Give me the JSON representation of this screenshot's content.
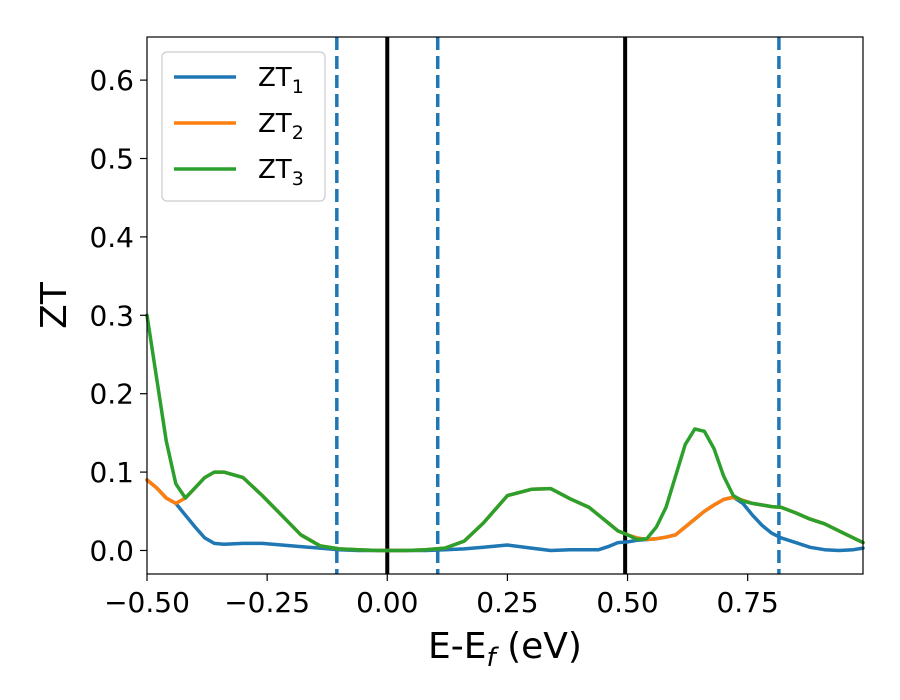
{
  "chart_data": {
    "type": "line",
    "xlabel": "E-E",
    "xlabel_sub": "f",
    "xlabel_unit": "(eV)",
    "ylabel": "ZT",
    "xlim": [
      -0.5,
      0.99
    ],
    "ylim": [
      -0.03,
      0.655
    ],
    "xticks": [
      -0.5,
      -0.25,
      0.0,
      0.25,
      0.5,
      0.75
    ],
    "xtick_labels": [
      "−0.50",
      "−0.25",
      "0.00",
      "0.25",
      "0.50",
      "0.75"
    ],
    "yticks": [
      0.0,
      0.1,
      0.2,
      0.3,
      0.4,
      0.5,
      0.6
    ],
    "ytick_labels": [
      "0.0",
      "0.1",
      "0.2",
      "0.3",
      "0.4",
      "0.5",
      "0.6"
    ],
    "grid": false,
    "legend_position": "top-left",
    "vlines": [
      {
        "x": 0.0,
        "style": "solid",
        "color": "#000000"
      },
      {
        "x": 0.495,
        "style": "solid",
        "color": "#000000"
      },
      {
        "x": -0.105,
        "style": "dashed",
        "color": "#1f77b4"
      },
      {
        "x": 0.105,
        "style": "dashed",
        "color": "#1f77b4"
      },
      {
        "x": 0.815,
        "style": "dashed",
        "color": "#1f77b4"
      }
    ],
    "series": [
      {
        "name": "ZT",
        "subscript": "1",
        "color": "#1f77b4",
        "x": [
          -0.5,
          -0.48,
          -0.46,
          -0.44,
          -0.42,
          -0.4,
          -0.38,
          -0.36,
          -0.34,
          -0.3,
          -0.26,
          -0.22,
          -0.18,
          -0.14,
          -0.1,
          -0.06,
          -0.02,
          0.0,
          0.04,
          0.08,
          0.12,
          0.16,
          0.2,
          0.25,
          0.3,
          0.34,
          0.38,
          0.42,
          0.44,
          0.46,
          0.48,
          0.5,
          0.52,
          0.54,
          0.56,
          0.58,
          0.6,
          0.62,
          0.64,
          0.66,
          0.68,
          0.7,
          0.72,
          0.74,
          0.76,
          0.78,
          0.8,
          0.82,
          0.85,
          0.88,
          0.91,
          0.94,
          0.97,
          0.99
        ],
        "y": [
          0.09,
          0.08,
          0.067,
          0.06,
          0.045,
          0.03,
          0.016,
          0.009,
          0.008,
          0.009,
          0.009,
          0.007,
          0.005,
          0.003,
          0.001,
          0.0,
          0.0,
          0.0,
          0.0,
          0.0,
          0.001,
          0.002,
          0.004,
          0.007,
          0.003,
          0.0,
          0.001,
          0.001,
          0.001,
          0.005,
          0.01,
          0.011,
          0.013,
          0.014,
          0.015,
          0.017,
          0.02,
          0.03,
          0.04,
          0.05,
          0.058,
          0.065,
          0.068,
          0.06,
          0.045,
          0.032,
          0.022,
          0.016,
          0.01,
          0.004,
          0.001,
          0.0,
          0.001,
          0.003
        ]
      },
      {
        "name": "ZT",
        "subscript": "2",
        "color": "#ff7f0e",
        "x": [
          -0.5,
          -0.48,
          -0.46,
          -0.44,
          -0.42,
          -0.4,
          -0.38,
          -0.36,
          -0.34,
          -0.3,
          -0.26,
          -0.22,
          -0.18,
          -0.14,
          -0.1,
          -0.06,
          -0.02,
          0.0,
          0.04,
          0.08,
          0.12,
          0.16,
          0.2,
          0.25,
          0.3,
          0.34,
          0.38,
          0.42,
          0.44,
          0.46,
          0.48,
          0.5,
          0.52,
          0.54,
          0.56,
          0.58,
          0.6,
          0.62,
          0.64,
          0.66,
          0.68,
          0.7,
          0.72,
          0.74,
          0.76,
          0.78,
          0.8,
          0.82,
          0.85,
          0.88,
          0.91,
          0.94,
          0.97,
          0.99
        ],
        "y": [
          0.09,
          0.08,
          0.067,
          0.06,
          0.067,
          0.08,
          0.093,
          0.1,
          0.1,
          0.093,
          0.07,
          0.045,
          0.02,
          0.006,
          0.002,
          0.001,
          0.0,
          0.0,
          0.0,
          0.001,
          0.003,
          0.012,
          0.035,
          0.07,
          0.078,
          0.079,
          0.066,
          0.055,
          0.045,
          0.035,
          0.025,
          0.02,
          0.016,
          0.014,
          0.015,
          0.017,
          0.02,
          0.03,
          0.04,
          0.05,
          0.058,
          0.065,
          0.068,
          0.064,
          0.06,
          0.058,
          0.056,
          0.055,
          0.048,
          0.04,
          0.034,
          0.025,
          0.016,
          0.01
        ]
      },
      {
        "name": "ZT",
        "subscript": "3",
        "color": "#2ca02c",
        "x": [
          -0.5,
          -0.48,
          -0.46,
          -0.44,
          -0.42,
          -0.4,
          -0.38,
          -0.36,
          -0.34,
          -0.3,
          -0.26,
          -0.22,
          -0.18,
          -0.14,
          -0.1,
          -0.06,
          -0.02,
          0.0,
          0.04,
          0.08,
          0.12,
          0.16,
          0.2,
          0.25,
          0.3,
          0.34,
          0.38,
          0.42,
          0.44,
          0.46,
          0.48,
          0.5,
          0.52,
          0.54,
          0.56,
          0.58,
          0.6,
          0.62,
          0.64,
          0.66,
          0.68,
          0.7,
          0.72,
          0.74,
          0.76,
          0.78,
          0.8,
          0.82,
          0.85,
          0.88,
          0.91,
          0.94,
          0.97,
          0.99
        ],
        "y": [
          0.3,
          0.22,
          0.14,
          0.085,
          0.067,
          0.08,
          0.093,
          0.1,
          0.1,
          0.093,
          0.07,
          0.045,
          0.02,
          0.006,
          0.002,
          0.001,
          0.0,
          0.0,
          0.0,
          0.001,
          0.003,
          0.012,
          0.035,
          0.07,
          0.078,
          0.079,
          0.066,
          0.055,
          0.045,
          0.035,
          0.025,
          0.02,
          0.014,
          0.015,
          0.03,
          0.055,
          0.095,
          0.135,
          0.155,
          0.152,
          0.13,
          0.095,
          0.07,
          0.063,
          0.06,
          0.058,
          0.056,
          0.055,
          0.048,
          0.04,
          0.034,
          0.025,
          0.016,
          0.01
        ]
      }
    ]
  }
}
